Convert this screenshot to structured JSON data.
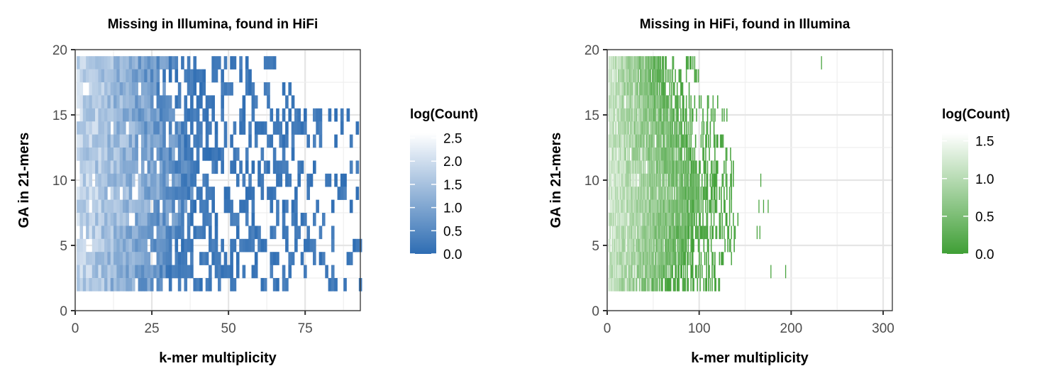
{
  "chart_data": [
    {
      "type": "heatmap",
      "title": "Missing in Illumina, found in HiFi",
      "xlabel": "k-mer multiplicity",
      "ylabel": "GA in 21-mers",
      "xlim": [
        0,
        93
      ],
      "ylim": [
        0,
        20
      ],
      "x_ticks": [
        0,
        25,
        50,
        75
      ],
      "y_ticks": [
        0,
        5,
        10,
        15,
        20
      ],
      "grid": true,
      "color_low": "#2e6db3",
      "color_high": "#ffffff",
      "legend": {
        "title": "log(Count)",
        "placement": "right",
        "range": [
          0,
          2.6
        ],
        "ticks": [
          "2.5",
          "2.0",
          "1.5",
          "1.0",
          "0.5",
          "0.0"
        ]
      },
      "cell_rows": [
        {
          "y": 19,
          "x_min": 1,
          "x_max": 65,
          "dense_until": 32
        },
        {
          "y": 18,
          "x_min": 1,
          "x_max": 60,
          "dense_until": 30
        },
        {
          "y": 17,
          "x_min": 1,
          "x_max": 70,
          "dense_until": 30
        },
        {
          "y": 16,
          "x_min": 1,
          "x_max": 72,
          "dense_until": 31
        },
        {
          "y": 15,
          "x_min": 1,
          "x_max": 93,
          "dense_until": 32
        },
        {
          "y": 14,
          "x_min": 1,
          "x_max": 92,
          "dense_until": 34
        },
        {
          "y": 13,
          "x_min": 1,
          "x_max": 90,
          "dense_until": 35
        },
        {
          "y": 12,
          "x_min": 1,
          "x_max": 88,
          "dense_until": 36
        },
        {
          "y": 11,
          "x_min": 1,
          "x_max": 92,
          "dense_until": 37
        },
        {
          "y": 10,
          "x_min": 1,
          "x_max": 93,
          "dense_until": 38
        },
        {
          "y": 9,
          "x_min": 1,
          "x_max": 92,
          "dense_until": 38
        },
        {
          "y": 8,
          "x_min": 1,
          "x_max": 90,
          "dense_until": 36
        },
        {
          "y": 7,
          "x_min": 1,
          "x_max": 89,
          "dense_until": 34
        },
        {
          "y": 6,
          "x_min": 1,
          "x_max": 85,
          "dense_until": 32
        },
        {
          "y": 5,
          "x_min": 1,
          "x_max": 93,
          "dense_until": 30
        },
        {
          "y": 4,
          "x_min": 1,
          "x_max": 90,
          "dense_until": 30
        },
        {
          "y": 3,
          "x_min": 1,
          "x_max": 92,
          "dense_until": 30
        },
        {
          "y": 2,
          "x_min": 1,
          "x_max": 93,
          "dense_until": 28
        }
      ]
    },
    {
      "type": "heatmap",
      "title": "Missing in HiFi, found in Illumina",
      "xlabel": "k-mer multiplicity",
      "ylabel": "GA in 21-mers",
      "xlim": [
        0,
        310
      ],
      "ylim": [
        0,
        20
      ],
      "x_ticks": [
        0,
        100,
        200,
        300
      ],
      "y_ticks": [
        0,
        5,
        10,
        15,
        20
      ],
      "grid": true,
      "color_low": "#3f9f35",
      "color_high": "#ffffff",
      "legend": {
        "title": "log(Count)",
        "placement": "right",
        "range": [
          0,
          1.6
        ],
        "ticks": [
          "1.5",
          "1.0",
          "0.5",
          "0.0"
        ]
      },
      "cell_rows": [
        {
          "y": 19,
          "x_min": 2,
          "x_max": 100,
          "dense_until": 60
        },
        {
          "y": 18,
          "x_min": 2,
          "x_max": 102,
          "dense_until": 60
        },
        {
          "y": 17,
          "x_min": 2,
          "x_max": 100,
          "dense_until": 60
        },
        {
          "y": 16,
          "x_min": 2,
          "x_max": 128,
          "dense_until": 70
        },
        {
          "y": 15,
          "x_min": 2,
          "x_max": 135,
          "dense_until": 75
        },
        {
          "y": 14,
          "x_min": 2,
          "x_max": 132,
          "dense_until": 80
        },
        {
          "y": 13,
          "x_min": 2,
          "x_max": 130,
          "dense_until": 85
        },
        {
          "y": 12,
          "x_min": 2,
          "x_max": 135,
          "dense_until": 90
        },
        {
          "y": 11,
          "x_min": 2,
          "x_max": 138,
          "dense_until": 95
        },
        {
          "y": 10,
          "x_min": 2,
          "x_max": 140,
          "dense_until": 100
        },
        {
          "y": 9,
          "x_min": 2,
          "x_max": 140,
          "dense_until": 100
        },
        {
          "y": 8,
          "x_min": 2,
          "x_max": 140,
          "dense_until": 100
        },
        {
          "y": 7,
          "x_min": 2,
          "x_max": 142,
          "dense_until": 95
        },
        {
          "y": 6,
          "x_min": 2,
          "x_max": 140,
          "dense_until": 90
        },
        {
          "y": 5,
          "x_min": 2,
          "x_max": 140,
          "dense_until": 88
        },
        {
          "y": 4,
          "x_min": 2,
          "x_max": 135,
          "dense_until": 85
        },
        {
          "y": 3,
          "x_min": 2,
          "x_max": 130,
          "dense_until": 70
        },
        {
          "y": 2,
          "x_min": 2,
          "x_max": 132,
          "dense_until": 60
        }
      ],
      "outlier_cells": [
        {
          "x": 233,
          "y": 19
        },
        {
          "x": 167,
          "y": 10
        },
        {
          "x": 165,
          "y": 8
        },
        {
          "x": 170,
          "y": 8
        },
        {
          "x": 175,
          "y": 8
        },
        {
          "x": 163,
          "y": 6
        },
        {
          "x": 166,
          "y": 6
        },
        {
          "x": 178,
          "y": 3
        },
        {
          "x": 194,
          "y": 3
        }
      ]
    }
  ]
}
